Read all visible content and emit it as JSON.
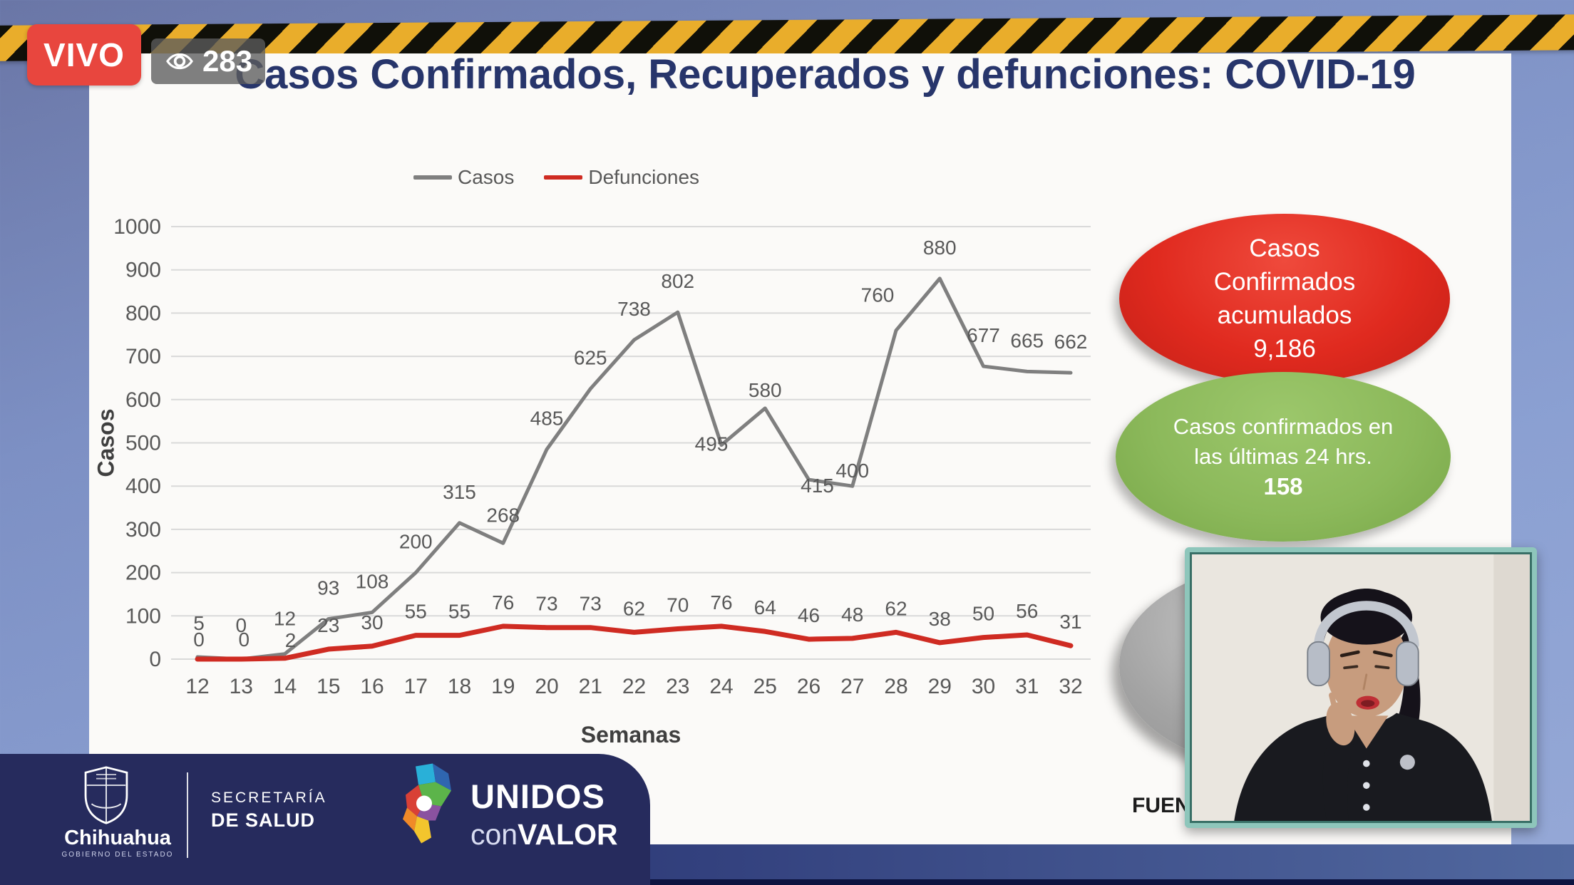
{
  "stream": {
    "live_label": "VIVO",
    "viewer_count": "283",
    "viewer_icon": "eye-icon"
  },
  "slide": {
    "title": "Casos Confirmados, Recuperados y defunciones: COVID-19",
    "source_label": "FUENT",
    "stats": {
      "accumulated": {
        "line1": "Casos",
        "line2": "Confirmados",
        "line3": "acumulados",
        "value": "9,186",
        "color": "#e02a1f"
      },
      "last24": {
        "line1": "Casos confirmados en",
        "line2": "las últimas 24 hrs.",
        "value": "158",
        "color": "#8cb95b"
      }
    }
  },
  "chart_data": {
    "type": "line",
    "title": "",
    "xlabel": "Semanas",
    "ylabel": "Casos",
    "x": [
      12,
      13,
      14,
      15,
      16,
      17,
      18,
      19,
      20,
      21,
      22,
      23,
      24,
      25,
      26,
      27,
      28,
      29,
      30,
      31,
      32
    ],
    "series": [
      {
        "name": "Casos",
        "color": "#7f7f7f",
        "values": [
          5,
          0,
          12,
          93,
          108,
          200,
          315,
          268,
          485,
          625,
          738,
          802,
          495,
          580,
          415,
          400,
          760,
          880,
          677,
          665,
          662
        ]
      },
      {
        "name": "Defunciones",
        "color": "#cf2b22",
        "values": [
          0,
          0,
          2,
          23,
          30,
          55,
          55,
          76,
          73,
          73,
          62,
          70,
          76,
          64,
          46,
          48,
          62,
          38,
          50,
          56,
          31
        ]
      }
    ],
    "ylim": [
      0,
      1000
    ],
    "yticks": [
      0,
      100,
      200,
      300,
      400,
      500,
      600,
      700,
      800,
      900,
      1000
    ],
    "grid": true,
    "legend_position": "top",
    "data_labels": true
  },
  "footer": {
    "brand": {
      "state": "Chihuahua",
      "state_sub": "GOBIERNO DEL ESTADO",
      "dept_line1": "SECRETARÍA",
      "dept_line2": "DE SALUD",
      "campaign_line1": "UNIDOS",
      "campaign_con": "con",
      "campaign_valor": "VALOR"
    }
  },
  "colors": {
    "title_navy": "#27356b",
    "live_red": "#e8463e",
    "tape_yellow": "#e9ad2b",
    "banner_navy": "#262b5d",
    "casos_line": "#7f7f7f",
    "defunciones_line": "#cf2b22",
    "stat_red": "#e02a1f",
    "stat_green": "#8cb95b"
  }
}
